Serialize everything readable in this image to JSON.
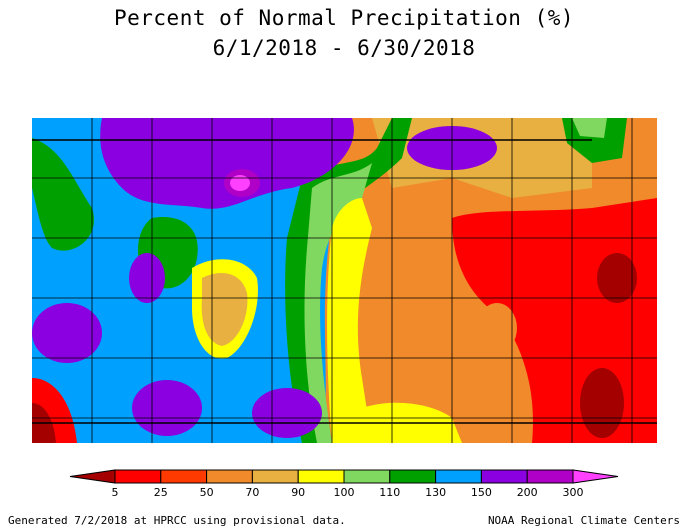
{
  "title_line1": "Percent of Normal Precipitation (%)",
  "title_line2": "6/1/2018 - 6/30/2018",
  "legend": {
    "labels": [
      "5",
      "25",
      "50",
      "70",
      "90",
      "100",
      "110",
      "130",
      "150",
      "200",
      "300"
    ],
    "colors": [
      "#a50000",
      "#ff0000",
      "#ff3a00",
      "#f08a2a",
      "#e8b040",
      "#ffff00",
      "#80d860",
      "#00a000",
      "#00a0ff",
      "#8a00e0",
      "#b000c8",
      "#ff40ff"
    ]
  },
  "footer_left": "Generated 7/2/2018 at HPRCC using provisional data.",
  "footer_right": "NOAA Regional Climate Centers"
}
